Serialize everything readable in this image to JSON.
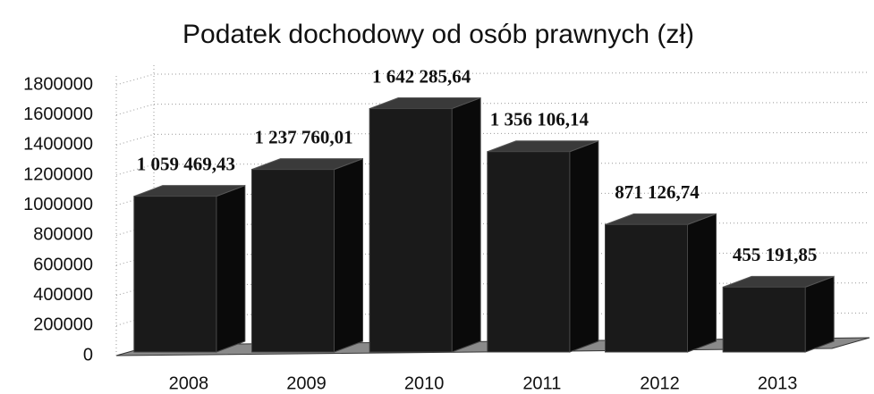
{
  "chart_data": {
    "type": "bar3d",
    "title": "Podatek dochodowy od osób prawnych (zł)",
    "categories": [
      "2008",
      "2009",
      "2010",
      "2011",
      "2012",
      "2013"
    ],
    "values": [
      1059469.43,
      1237760.01,
      1642285.64,
      1356106.14,
      871126.74,
      455191.85
    ],
    "value_labels": [
      "1 059 469,43",
      "1 237 760,01",
      "1 642 285,64",
      "1 356 106,14",
      "871 126,74",
      "455 191,85"
    ],
    "color": "#1a1a1a",
    "ylim": [
      0,
      1800000
    ],
    "yticks": [
      0,
      200000,
      400000,
      600000,
      800000,
      1000000,
      1200000,
      1400000,
      1600000,
      1800000
    ],
    "grid": true
  }
}
